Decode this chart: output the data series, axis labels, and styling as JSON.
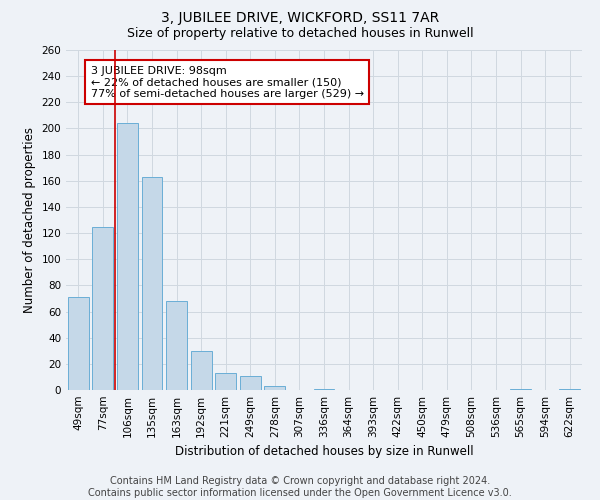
{
  "title": "3, JUBILEE DRIVE, WICKFORD, SS11 7AR",
  "subtitle": "Size of property relative to detached houses in Runwell",
  "xlabel": "Distribution of detached houses by size in Runwell",
  "ylabel": "Number of detached properties",
  "categories": [
    "49sqm",
    "77sqm",
    "106sqm",
    "135sqm",
    "163sqm",
    "192sqm",
    "221sqm",
    "249sqm",
    "278sqm",
    "307sqm",
    "336sqm",
    "364sqm",
    "393sqm",
    "422sqm",
    "450sqm",
    "479sqm",
    "508sqm",
    "536sqm",
    "565sqm",
    "594sqm",
    "622sqm"
  ],
  "values": [
    71,
    125,
    204,
    163,
    68,
    30,
    13,
    11,
    3,
    0,
    1,
    0,
    0,
    0,
    0,
    0,
    0,
    0,
    1,
    0,
    1
  ],
  "bar_color": "#c5d8e8",
  "bar_edge_color": "#6aaed6",
  "red_line_x": 1.5,
  "annotation_text": "3 JUBILEE DRIVE: 98sqm\n← 22% of detached houses are smaller (150)\n77% of semi-detached houses are larger (529) →",
  "annotation_box_color": "#ffffff",
  "annotation_box_edge_color": "#cc0000",
  "ylim": [
    0,
    260
  ],
  "yticks": [
    0,
    20,
    40,
    60,
    80,
    100,
    120,
    140,
    160,
    180,
    200,
    220,
    240,
    260
  ],
  "grid_color": "#d0d8e0",
  "background_color": "#eef2f7",
  "footer_text": "Contains HM Land Registry data © Crown copyright and database right 2024.\nContains public sector information licensed under the Open Government Licence v3.0.",
  "title_fontsize": 10,
  "subtitle_fontsize": 9,
  "axis_label_fontsize": 8.5,
  "tick_fontsize": 7.5,
  "annotation_fontsize": 8,
  "footer_fontsize": 7
}
